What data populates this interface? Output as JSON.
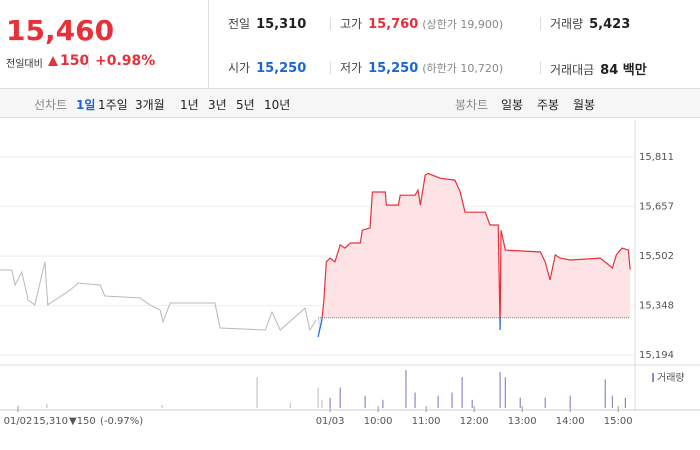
{
  "header": {
    "price": "15,460",
    "change_label": "전일대비",
    "change": "150",
    "change_pct": "+0.98%"
  },
  "stats": [
    {
      "label": "전일",
      "value": "15,310",
      "color": "#222222"
    },
    {
      "label": "고가",
      "value": "15,760",
      "note": "(상한가 19,900)",
      "color": "#e8303a"
    },
    {
      "label": "거래량",
      "value": "5,423",
      "color": "#222222"
    },
    {
      "label": "시가",
      "value": "15,250",
      "color": "#1a66d6"
    },
    {
      "label": "저가",
      "value": "15,250",
      "note": "(하한가 10,720)",
      "color": "#1a66d6"
    },
    {
      "label": "거래대금",
      "value": "84 백만",
      "color": "#222222"
    }
  ],
  "tabs": {
    "line_label": "선차트",
    "line_tabs": [
      "1일",
      "1주일",
      "3개월",
      "1년",
      "3년",
      "5년",
      "10년"
    ],
    "candle_label": "봉차트",
    "candle_tabs": [
      "일봉",
      "주봉",
      "월봉"
    ]
  },
  "footer": {
    "close": "15,310",
    "change": "▼150",
    "pct": "(-0.97%)"
  },
  "chart_data": {
    "type": "line",
    "xlim": [
      -6.875,
      6.35
    ],
    "xticks": [
      {
        "value": -6.5,
        "label": "01/02"
      },
      {
        "value": 0,
        "label": "01/03"
      },
      {
        "value": 1,
        "label": "10:00"
      },
      {
        "value": 2,
        "label": "11:00"
      },
      {
        "value": 3,
        "label": "12:00"
      },
      {
        "value": 4,
        "label": "13:00"
      },
      {
        "value": 5,
        "label": "14:00"
      },
      {
        "value": 6,
        "label": "15:00"
      }
    ],
    "ylim": [
      15194,
      15811
    ],
    "yticks": [
      {
        "value": 15194,
        "label": "15,194"
      },
      {
        "value": 15348,
        "label": "15,348"
      },
      {
        "value": 15502,
        "label": "15,502"
      },
      {
        "value": 15657,
        "label": "15,657"
      },
      {
        "value": 15811,
        "label": "15,811"
      }
    ],
    "grid": true,
    "base": 15310,
    "fill_color": "#fde3e5",
    "below_color": "#1a66d6",
    "series": [
      {
        "color": "#b8b8b8",
        "x": [
          -6.88,
          -6.63,
          -6.56,
          -6.42,
          -6.29,
          -6.15,
          -5.94,
          -5.88,
          -5.42,
          -5.25,
          -4.79,
          -4.69,
          -3.96,
          -3.75,
          -3.54,
          -3.48,
          -3.33,
          -2.4,
          -2.29,
          -1.35,
          -1.21,
          -1.04,
          -0.52,
          -0.42,
          -0.29
        ],
        "values": [
          15459,
          15459,
          15412,
          15453,
          15365,
          15350,
          15484,
          15350,
          15396,
          15418,
          15412,
          15378,
          15372,
          15350,
          15334,
          15297,
          15356,
          15356,
          15278,
          15272,
          15328,
          15272,
          15340,
          15272,
          15303
        ]
      },
      {
        "color": "#e8303a",
        "x": [
          -0.25,
          -0.17,
          -0.13,
          -0.08,
          0,
          0.1,
          0.21,
          0.31,
          0.42,
          0.63,
          0.67,
          0.83,
          0.88,
          1.15,
          1.17,
          1.42,
          1.46,
          1.77,
          1.83,
          1.88,
          1.98,
          2.04,
          2.29,
          2.6,
          2.71,
          2.81,
          3.23,
          3.33,
          3.5,
          3.54,
          3.56,
          3.65,
          4.38,
          4.48,
          4.58,
          4.69,
          4.79,
          5,
          5.63,
          5.88,
          5.96,
          6.08,
          6.21,
          6.25
        ],
        "values": [
          15250,
          15303,
          15365,
          15484,
          15496,
          15484,
          15537,
          15527,
          15543,
          15543,
          15583,
          15590,
          15702,
          15702,
          15661,
          15661,
          15692,
          15692,
          15708,
          15661,
          15755,
          15760,
          15745,
          15739,
          15702,
          15639,
          15639,
          15599,
          15599,
          15272,
          15583,
          15521,
          15515,
          15484,
          15428,
          15506,
          15496,
          15490,
          15496,
          15465,
          15506,
          15527,
          15521,
          15460
        ]
      }
    ],
    "volume": {
      "name": "거래량",
      "color": "#8f87d0",
      "prev_color": "#c4c4c4",
      "x": [
        -5.9,
        -3.5,
        -1.52,
        -0.83,
        -0.25,
        -0.17,
        0,
        0.21,
        0.73,
        1.1,
        1.58,
        1.77,
        2.25,
        2.54,
        2.75,
        2.96,
        3.54,
        3.65,
        3.96,
        4.48,
        5,
        5.73,
        5.88,
        6.15
      ],
      "values": [
        60,
        45,
        450,
        75,
        300,
        120,
        150,
        300,
        180,
        120,
        555,
        225,
        180,
        225,
        450,
        120,
        525,
        450,
        150,
        150,
        180,
        420,
        180,
        150
      ]
    }
  }
}
